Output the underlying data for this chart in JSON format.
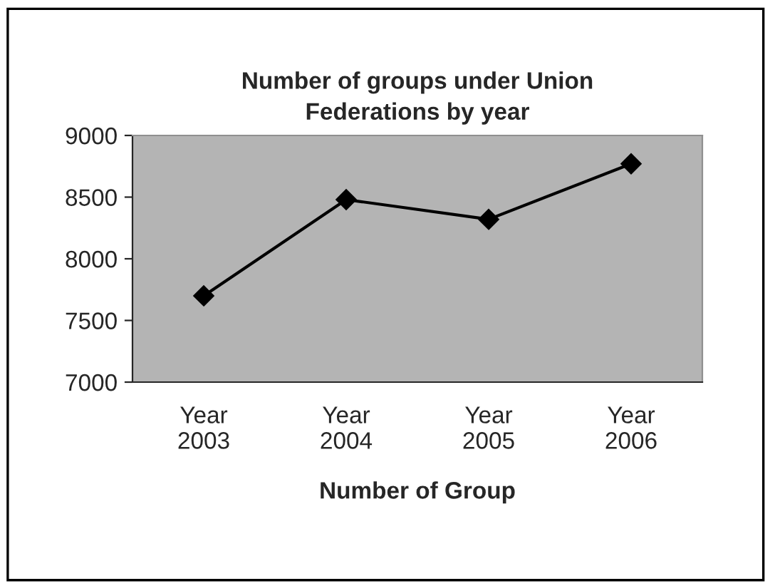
{
  "chart_data": {
    "type": "line",
    "title": "Number of groups under Union\nFederations by year",
    "xlabel": "Number of Group",
    "categories": [
      "Year\n2003",
      "Year\n2004",
      "Year\n2005",
      "Year\n2006"
    ],
    "series": [
      {
        "color": "#000000",
        "values": [
          7700,
          8480,
          8320,
          8770
        ]
      }
    ],
    "ylim": [
      7000,
      9000
    ],
    "yticks": [
      7000,
      7500,
      8000,
      8500,
      9000
    ],
    "marker": "diamond",
    "line_style": "solid",
    "grid": false,
    "legend": false
  }
}
